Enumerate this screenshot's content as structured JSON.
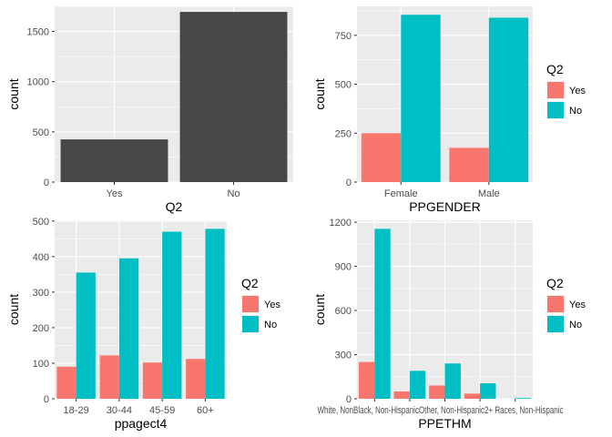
{
  "chart_data": [
    {
      "type": "bar",
      "xlabel": "Q2",
      "ylabel": "count",
      "categories": [
        "Yes",
        "No"
      ],
      "series": [
        {
          "values": [
            425,
            1695
          ],
          "color": "#474747"
        }
      ],
      "ylim": [
        0,
        1750
      ],
      "yticks": [
        0,
        500,
        1000,
        1500
      ],
      "legend": null,
      "grid": true
    },
    {
      "type": "bar",
      "xlabel": "PPGENDER",
      "ylabel": "count",
      "categories": [
        "Female",
        "Male"
      ],
      "series": [
        {
          "name": "Yes",
          "values": [
            250,
            175
          ],
          "color": "#F8766D"
        },
        {
          "name": "No",
          "values": [
            855,
            840
          ],
          "color": "#00BFC4"
        }
      ],
      "ylim": [
        0,
        898
      ],
      "yticks": [
        0,
        250,
        500,
        750
      ],
      "legend": {
        "title": "Q2",
        "position": "right"
      },
      "grid": true
    },
    {
      "type": "bar",
      "xlabel": "ppagect4",
      "ylabel": "count",
      "categories": [
        "18-29",
        "30-44",
        "45-59",
        "60+"
      ],
      "series": [
        {
          "name": "Yes",
          "values": [
            90,
            122,
            102,
            112
          ],
          "color": "#F8766D"
        },
        {
          "name": "No",
          "values": [
            355,
            395,
            470,
            478
          ],
          "color": "#00BFC4"
        }
      ],
      "ylim": [
        0,
        502
      ],
      "yticks": [
        0,
        100,
        200,
        300,
        400,
        500
      ],
      "legend": {
        "title": "Q2",
        "position": "right"
      },
      "grid": true
    },
    {
      "type": "bar",
      "xlabel": "PPETHM",
      "ylabel": "count",
      "categories": [
        "White, Non-Hispanic",
        "Black, Non-Hispanic",
        "Other, Non-Hispanic",
        "Hispanic",
        "2+ Races, Non-Hispanic"
      ],
      "tick_labels_printed": "White, NonBlack, Non-HispanicOther, Non-Hispanic2+ Races, Non-Hispanic",
      "series": [
        {
          "name": "Yes",
          "values": [
            250,
            50,
            90,
            35,
            0
          ],
          "color": "#F8766D"
        },
        {
          "name": "No",
          "values": [
            1155,
            190,
            240,
            105,
            5
          ],
          "color": "#00BFC4"
        }
      ],
      "ylim": [
        0,
        1213
      ],
      "yticks": [
        0,
        300,
        600,
        900,
        1200
      ],
      "legend": {
        "title": "Q2",
        "position": "right"
      },
      "grid": true
    }
  ]
}
